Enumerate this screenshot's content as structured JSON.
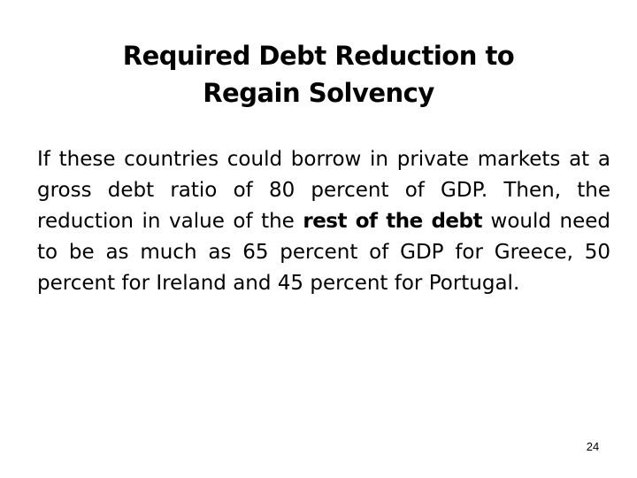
{
  "slide": {
    "title_line1": "Required Debt Reduction to",
    "title_line2": "Regain Solvency",
    "body_part1": "If these countries could borrow in private markets at a gross debt ratio of 80 percent of GDP. Then, the reduction in value of the ",
    "body_emphasis": "rest of the debt",
    "body_part2": " would need to be as much as 65 percent of GDP for Greece, 50 percent for Ireland and 45 percent for Portugal.",
    "page_number": "24"
  }
}
